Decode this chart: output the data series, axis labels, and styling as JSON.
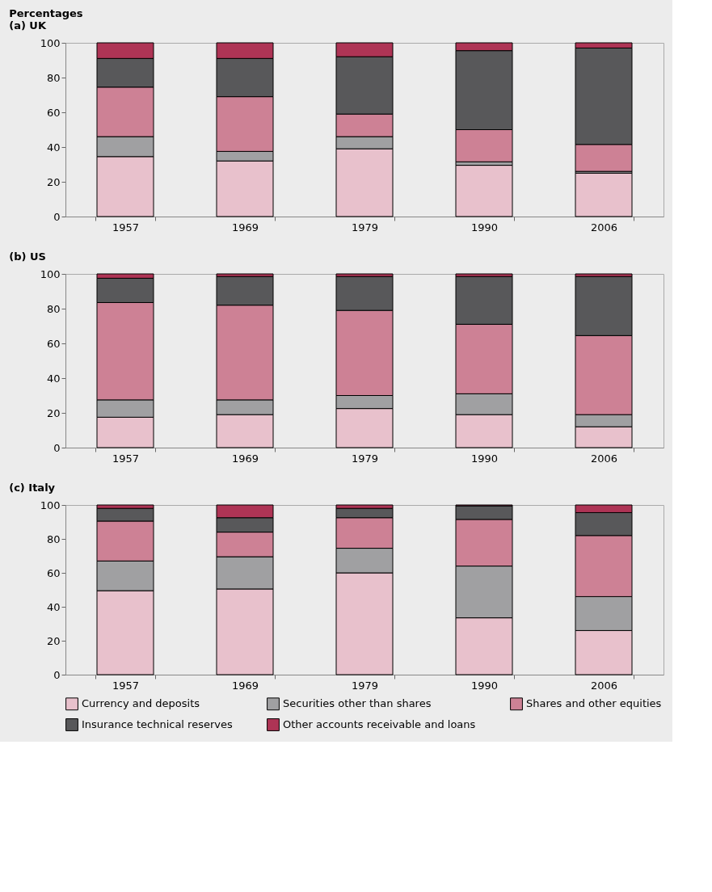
{
  "chart_data": [
    {
      "type": "bar",
      "stacked": true,
      "ylabel": "Percentages",
      "title": "(a) UK",
      "categories": [
        "1957",
        "1969",
        "1979",
        "1990",
        "2006"
      ],
      "ylim": [
        0,
        100
      ],
      "yticks": [
        0,
        20,
        40,
        60,
        80,
        100
      ],
      "grid": false,
      "series": [
        {
          "color": "#e8c1cc",
          "values": [
            34.5,
            32,
            39,
            29.5,
            25
          ]
        },
        {
          "color": "#a0a0a2",
          "values": [
            11.5,
            5.5,
            7,
            2,
            1
          ]
        },
        {
          "color": "#cd8195",
          "values": [
            28.5,
            31.5,
            13,
            18.5,
            15.5
          ]
        },
        {
          "color": "#58585a",
          "values": [
            16.5,
            22,
            33,
            45.5,
            55.5
          ]
        },
        {
          "color": "#ae3455",
          "values": [
            9,
            9,
            8,
            4.5,
            3
          ]
        }
      ]
    },
    {
      "type": "bar",
      "stacked": true,
      "title": "(b) US",
      "categories": [
        "1957",
        "1969",
        "1979",
        "1990",
        "2006"
      ],
      "ylim": [
        0,
        100
      ],
      "yticks": [
        0,
        20,
        40,
        60,
        80,
        100
      ],
      "grid": false,
      "series": [
        {
          "color": "#e8c1cc",
          "values": [
            17.5,
            19,
            22.5,
            19,
            12
          ]
        },
        {
          "color": "#a0a0a2",
          "values": [
            10,
            8.5,
            7.5,
            12,
            7
          ]
        },
        {
          "color": "#cd8195",
          "values": [
            56,
            54.5,
            49,
            40,
            45.5
          ]
        },
        {
          "color": "#58585a",
          "values": [
            14,
            16.5,
            19.5,
            27.5,
            34
          ]
        },
        {
          "color": "#ae3455",
          "values": [
            2.5,
            1.5,
            1.5,
            1.5,
            1.5
          ]
        }
      ]
    },
    {
      "type": "bar",
      "stacked": true,
      "title": "(c) Italy",
      "categories": [
        "1957",
        "1969",
        "1979",
        "1990",
        "2006"
      ],
      "ylim": [
        0,
        100
      ],
      "yticks": [
        0,
        20,
        40,
        60,
        80,
        100
      ],
      "grid": false,
      "legend": "bottom",
      "series": [
        {
          "name": "Currency and deposits",
          "color": "#e8c1cc",
          "values": [
            49.5,
            50.5,
            60,
            33.5,
            26
          ]
        },
        {
          "name": "Securities other than shares",
          "color": "#a0a0a2",
          "values": [
            17.5,
            19,
            14.5,
            30.5,
            20
          ]
        },
        {
          "name": "Shares and other equities",
          "color": "#cd8195",
          "values": [
            23.5,
            14.5,
            18,
            27.5,
            36
          ]
        },
        {
          "name": "Insurance technical reserves",
          "color": "#58585a",
          "values": [
            7.5,
            8.5,
            5.5,
            8,
            13.5
          ]
        },
        {
          "name": "Other accounts receivable and loans",
          "color": "#ae3455",
          "values": [
            2,
            7.5,
            2,
            0.5,
            4.5
          ]
        }
      ]
    }
  ]
}
